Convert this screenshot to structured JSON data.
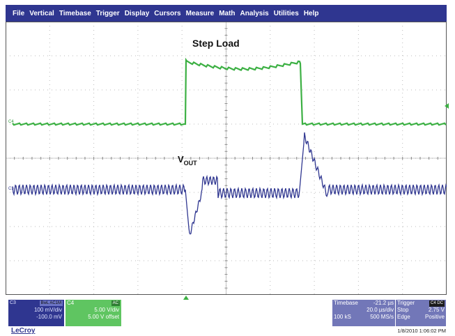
{
  "menu": {
    "items": [
      "File",
      "Vertical",
      "Timebase",
      "Trigger",
      "Display",
      "Cursors",
      "Measure",
      "Math",
      "Analysis",
      "Utilities",
      "Help"
    ]
  },
  "annotations": {
    "step_load": "Step Load",
    "vout_main": "V",
    "vout_sub": "OUT"
  },
  "traces": {
    "c4_label": "C4",
    "c3_label": "C3",
    "c4_color": "#3cb043",
    "c3_color": "#2f3690"
  },
  "channel_c3": {
    "label": "C3",
    "badge": "BwL AC1M",
    "scale": "100 mV/div",
    "offset": "-100.0 mV",
    "color": "#2f3690"
  },
  "channel_c4": {
    "label": "C4",
    "coupling": "AC",
    "scale": "5.00 V/div",
    "offset": "5.00 V offset",
    "color": "#5fc561"
  },
  "timebase": {
    "label": "Timebase",
    "delay": "-21.2 µs",
    "per_div": "20.0 µs/div",
    "samples": "100 kS",
    "rate": "500 MS/s"
  },
  "trigger": {
    "label": "Trigger",
    "badge": "C4 DC",
    "mode": "Stop",
    "level": "2.75 V",
    "type": "Edge",
    "slope": "Positive"
  },
  "footer": {
    "brand": "LeCroy",
    "datetime": "1/8/2010 1:06:02 PM"
  }
}
